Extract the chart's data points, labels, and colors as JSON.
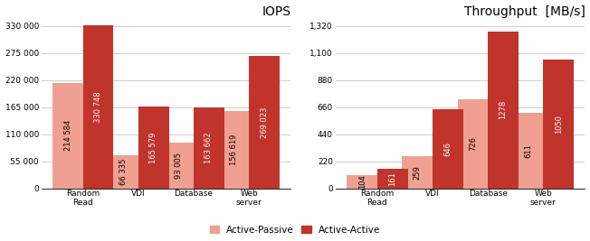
{
  "iops_categories": [
    "Random\nRead",
    "VDI",
    "Database",
    "Web\nserver"
  ],
  "iops_ap": [
    214584,
    66335,
    93005,
    156619
  ],
  "iops_aa": [
    330748,
    165579,
    163662,
    269023
  ],
  "tp_categories": [
    "Random\nRead",
    "VDI",
    "Database",
    "Web\nserver"
  ],
  "tp_ap": [
    104,
    259,
    726,
    611
  ],
  "tp_aa": [
    161,
    646,
    1278,
    1050
  ],
  "color_ap": "#f0a090",
  "color_aa": "#c0342b",
  "title_iops": "IOPS",
  "title_tp": "Throughput  [MB/s]",
  "legend_ap": "Active-Passive",
  "legend_aa": "Active-Active",
  "iops_yticks": [
    0,
    55000,
    110000,
    165000,
    220000,
    275000,
    330000
  ],
  "iops_ytick_labels": [
    "0",
    "55 000",
    "110 000",
    "165 000",
    "220 000",
    "275 000",
    "330 000"
  ],
  "tp_yticks": [
    0,
    220,
    440,
    660,
    880,
    1100,
    1320
  ],
  "tp_ytick_labels": [
    "0",
    "220",
    "440",
    "660",
    "880",
    "1,100",
    "1,320"
  ],
  "bar_width": 0.55,
  "label_fontsize": 6.0,
  "title_fontsize": 10,
  "tick_fontsize": 6.5,
  "legend_fontsize": 7.5,
  "iops_ylim": 345000,
  "tp_ylim": 1380
}
